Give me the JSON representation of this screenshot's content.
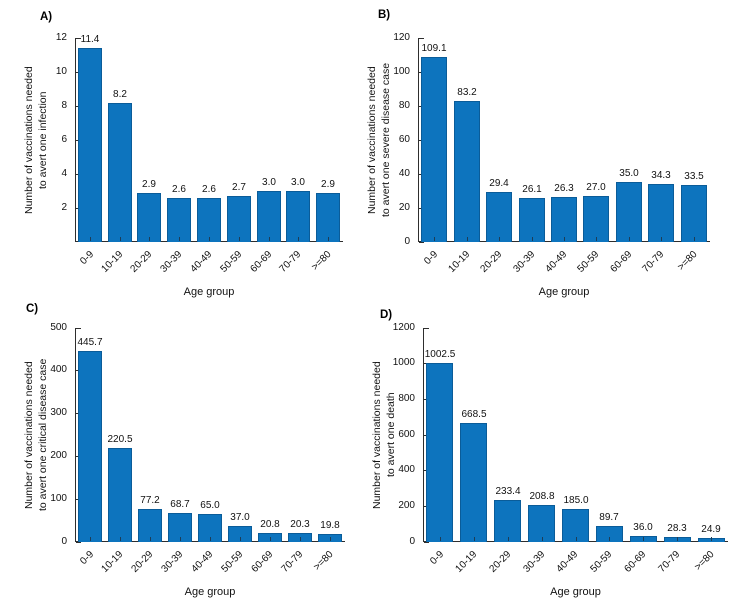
{
  "figure": {
    "background": "#ffffff",
    "text_color": "#111111",
    "axis_color": "#2e2e2e",
    "bar_color": "#0d74be",
    "age_groups": [
      "0-9",
      "10-19",
      "20-29",
      "30-39",
      "40-49",
      "50-59",
      "60-69",
      "70-79",
      ">=80"
    ]
  },
  "chart_data": [
    {
      "type": "bar",
      "panel_letter": "A)",
      "title": "",
      "xlabel": "Age group",
      "ylabel": "Number of vaccinations needed to avert one infection",
      "ylabel_lines": [
        "Number of vaccinations needed",
        "to avert one infection"
      ],
      "categories": [
        "0-9",
        "10-19",
        "20-29",
        "30-39",
        "40-49",
        "50-59",
        "60-69",
        "70-79",
        ">=80"
      ],
      "values": [
        11.4,
        8.2,
        2.9,
        2.6,
        2.6,
        2.7,
        3.0,
        3.0,
        2.9
      ],
      "value_labels": [
        "11.4",
        "8.2",
        "2.9",
        "2.6",
        "2.6",
        "2.7",
        "3.0",
        "3.0",
        "2.9"
      ],
      "ylim": [
        0,
        12
      ],
      "yticks": [
        2,
        4,
        6,
        8,
        10,
        12
      ],
      "grid": false,
      "legend": null
    },
    {
      "type": "bar",
      "panel_letter": "B)",
      "title": "",
      "xlabel": "Age group",
      "ylabel": "Number of vaccinations needed to avert one severe disease case",
      "ylabel_lines": [
        "Number of vaccinations needed",
        "to avert one severe disease case"
      ],
      "categories": [
        "0-9",
        "10-19",
        "20-29",
        "30-39",
        "40-49",
        "50-59",
        "60-69",
        "70-79",
        ">=80"
      ],
      "values": [
        109.1,
        83.2,
        29.4,
        26.1,
        26.3,
        27.0,
        35.0,
        34.3,
        33.5
      ],
      "value_labels": [
        "109.1",
        "83.2",
        "29.4",
        "26.1",
        "26.3",
        "27.0",
        "35.0",
        "34.3",
        "33.5"
      ],
      "ylim": [
        0,
        120
      ],
      "yticks": [
        0,
        20,
        40,
        60,
        80,
        100,
        120
      ],
      "grid": false,
      "legend": null
    },
    {
      "type": "bar",
      "panel_letter": "C)",
      "title": "",
      "xlabel": "Age group",
      "ylabel": "Number of vaccinations needed to avert one critical disease case",
      "ylabel_lines": [
        "Number of vaccinations needed",
        "to avert one critical disease case"
      ],
      "categories": [
        "0-9",
        "10-19",
        "20-29",
        "30-39",
        "40-49",
        "50-59",
        "60-69",
        "70-79",
        ">=80"
      ],
      "values": [
        445.7,
        220.5,
        77.2,
        68.7,
        65.0,
        37.0,
        20.8,
        20.3,
        19.8
      ],
      "value_labels": [
        "445.7",
        "220.5",
        "77.2",
        "68.7",
        "65.0",
        "37.0",
        "20.8",
        "20.3",
        "19.8"
      ],
      "ylim": [
        0,
        500
      ],
      "yticks": [
        0,
        100,
        200,
        300,
        400,
        500
      ],
      "grid": false,
      "legend": null
    },
    {
      "type": "bar",
      "panel_letter": "D)",
      "title": "",
      "xlabel": "Age group",
      "ylabel": "Number of vaccinations needed to avert one death",
      "ylabel_lines": [
        "Number of vaccinations needed",
        "to avert one death"
      ],
      "categories": [
        "0-9",
        "10-19",
        "20-29",
        "30-39",
        "40-49",
        "50-59",
        "60-69",
        "70-79",
        ">=80"
      ],
      "values": [
        1002.5,
        668.5,
        233.4,
        208.8,
        185.0,
        89.7,
        36.0,
        28.3,
        24.9
      ],
      "value_labels": [
        "1002.5",
        "668.5",
        "233.4",
        "208.8",
        "185.0",
        "89.7",
        "36.0",
        "28.3",
        "24.9"
      ],
      "ylim": [
        0,
        1200
      ],
      "yticks": [
        0,
        200,
        400,
        600,
        800,
        1000,
        1200
      ],
      "grid": false,
      "legend": null
    }
  ]
}
